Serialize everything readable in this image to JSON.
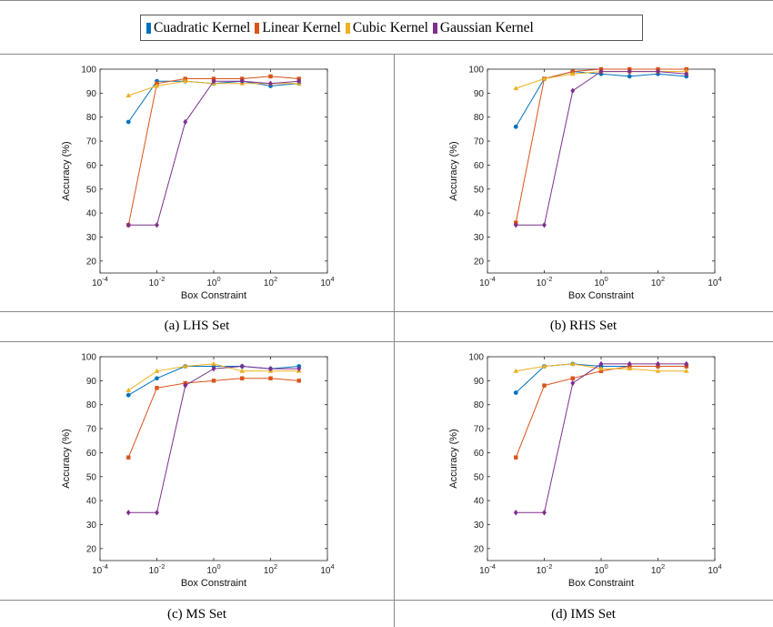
{
  "legend": {
    "items": [
      {
        "label": "Cuadratic Kernel",
        "color": "#0072bd"
      },
      {
        "label": "Linear Kernel",
        "color": "#d95319"
      },
      {
        "label": "Cubic Kernel",
        "color": "#edb120"
      },
      {
        "label": "Gaussian Kernel",
        "color": "#7e2f8e"
      }
    ]
  },
  "captions": [
    "(a) LHS Set",
    "(b) RHS Set",
    "(c) MS Set",
    "(d) IMS Set"
  ],
  "chart_data": [
    {
      "type": "line",
      "title": "",
      "xlabel": "Box Constraint",
      "ylabel": "Accuracy (%)",
      "xscale": "log",
      "xlim": [
        0.0001,
        10000
      ],
      "ylim": [
        15,
        100
      ],
      "x_ticks": [
        "10^-4",
        "10^-2",
        "10^0",
        "10^2",
        "10^4"
      ],
      "y_ticks": [
        20,
        30,
        40,
        50,
        60,
        70,
        80,
        90,
        100
      ],
      "grid": false,
      "x": [
        0.001,
        0.01,
        0.1,
        1,
        10,
        100,
        1000
      ],
      "series": [
        {
          "name": "Cuadratic Kernel",
          "color": "#0072bd",
          "marker": "circle",
          "values": [
            78,
            95,
            95,
            94,
            95,
            93,
            94
          ]
        },
        {
          "name": "Linear Kernel",
          "color": "#d95319",
          "marker": "square",
          "values": [
            35,
            94,
            96,
            96,
            96,
            97,
            96
          ]
        },
        {
          "name": "Cubic Kernel",
          "color": "#edb120",
          "marker": "triangle",
          "values": [
            89,
            93,
            95,
            94,
            94,
            94,
            94
          ]
        },
        {
          "name": "Gaussian Kernel",
          "color": "#7e2f8e",
          "marker": "diamond",
          "values": [
            35,
            35,
            78,
            95,
            95,
            94,
            95
          ]
        }
      ]
    },
    {
      "type": "line",
      "title": "",
      "xlabel": "Box Constraint",
      "ylabel": "Accuracy (%)",
      "xscale": "log",
      "xlim": [
        0.0001,
        10000
      ],
      "ylim": [
        15,
        100
      ],
      "x_ticks": [
        "10^-4",
        "10^-2",
        "10^0",
        "10^2",
        "10^4"
      ],
      "y_ticks": [
        20,
        30,
        40,
        50,
        60,
        70,
        80,
        90,
        100
      ],
      "grid": false,
      "x": [
        0.001,
        0.01,
        0.1,
        1,
        10,
        100,
        1000
      ],
      "series": [
        {
          "name": "Cuadratic Kernel",
          "color": "#0072bd",
          "marker": "circle",
          "values": [
            76,
            96,
            99,
            98,
            97,
            98,
            97
          ]
        },
        {
          "name": "Linear Kernel",
          "color": "#d95319",
          "marker": "square",
          "values": [
            36,
            96,
            99,
            100,
            100,
            100,
            100
          ]
        },
        {
          "name": "Cubic Kernel",
          "color": "#edb120",
          "marker": "triangle",
          "values": [
            92,
            96,
            98,
            99,
            99,
            99,
            99
          ]
        },
        {
          "name": "Gaussian Kernel",
          "color": "#7e2f8e",
          "marker": "diamond",
          "values": [
            35,
            35,
            91,
            99,
            99,
            99,
            98
          ]
        }
      ]
    },
    {
      "type": "line",
      "title": "",
      "xlabel": "Box Constraint",
      "ylabel": "Accuracy (%)",
      "xscale": "log",
      "xlim": [
        0.0001,
        10000
      ],
      "ylim": [
        15,
        100
      ],
      "x_ticks": [
        "10^-4",
        "10^-2",
        "10^0",
        "10^2",
        "10^4"
      ],
      "y_ticks": [
        20,
        30,
        40,
        50,
        60,
        70,
        80,
        90,
        100
      ],
      "grid": false,
      "x": [
        0.001,
        0.01,
        0.1,
        1,
        10,
        100,
        1000
      ],
      "series": [
        {
          "name": "Cuadratic Kernel",
          "color": "#0072bd",
          "marker": "circle",
          "values": [
            84,
            91,
            96,
            96,
            96,
            95,
            96
          ]
        },
        {
          "name": "Linear Kernel",
          "color": "#d95319",
          "marker": "square",
          "values": [
            58,
            87,
            89,
            90,
            91,
            91,
            90
          ]
        },
        {
          "name": "Cubic Kernel",
          "color": "#edb120",
          "marker": "triangle",
          "values": [
            86,
            94,
            96,
            97,
            94,
            94,
            94
          ]
        },
        {
          "name": "Gaussian Kernel",
          "color": "#7e2f8e",
          "marker": "diamond",
          "values": [
            35,
            35,
            88,
            95,
            96,
            95,
            95
          ]
        }
      ]
    },
    {
      "type": "line",
      "title": "",
      "xlabel": "Box Constraint",
      "ylabel": "Accuracy (%)",
      "xscale": "log",
      "xlim": [
        0.0001,
        10000
      ],
      "ylim": [
        15,
        100
      ],
      "x_ticks": [
        "10^-4",
        "10^-2",
        "10^0",
        "10^2",
        "10^4"
      ],
      "y_ticks": [
        20,
        30,
        40,
        50,
        60,
        70,
        80,
        90,
        100
      ],
      "grid": false,
      "x": [
        0.001,
        0.01,
        0.1,
        1,
        10,
        100,
        1000
      ],
      "series": [
        {
          "name": "Cuadratic Kernel",
          "color": "#0072bd",
          "marker": "circle",
          "values": [
            85,
            96,
            97,
            96,
            96,
            96,
            96
          ]
        },
        {
          "name": "Linear Kernel",
          "color": "#d95319",
          "marker": "square",
          "values": [
            58,
            88,
            91,
            94,
            96,
            96,
            96
          ]
        },
        {
          "name": "Cubic Kernel",
          "color": "#edb120",
          "marker": "triangle",
          "values": [
            94,
            96,
            97,
            95,
            95,
            94,
            94
          ]
        },
        {
          "name": "Gaussian Kernel",
          "color": "#7e2f8e",
          "marker": "diamond",
          "values": [
            35,
            35,
            89,
            97,
            97,
            97,
            97
          ]
        }
      ]
    }
  ]
}
